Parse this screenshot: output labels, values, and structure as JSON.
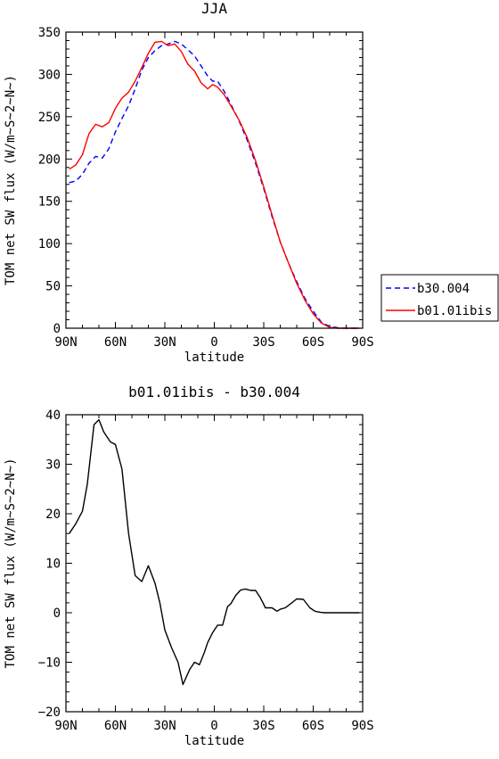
{
  "chart_data": [
    {
      "type": "line",
      "title": "JJA",
      "xlabel": "latitude",
      "ylabel": "TOM net SW flux (W/m~S~2~N~)",
      "xlim": [
        90,
        -90
      ],
      "ylim": [
        0,
        350
      ],
      "xticks": [
        90,
        60,
        30,
        0,
        -30,
        -60,
        -90
      ],
      "xtick_labels": [
        "90N",
        "60N",
        "30N",
        "0",
        "30S",
        "60S",
        "90S"
      ],
      "yticks": [
        0,
        50,
        100,
        150,
        200,
        250,
        300,
        350
      ],
      "ytick_labels": [
        "0",
        "50",
        "100",
        "150",
        "200",
        "250",
        "300",
        "350"
      ],
      "legend_position": "right",
      "series": [
        {
          "name": "b30.004",
          "color": "#0000ff",
          "dash": "dashed",
          "x": [
            88,
            84,
            80,
            76,
            72,
            68,
            64,
            60,
            56,
            52,
            48,
            44,
            40,
            36,
            32,
            28,
            24,
            20,
            16,
            12,
            8,
            4,
            1,
            -2,
            -6,
            -10,
            -15,
            -20,
            -25,
            -30,
            -35,
            -40,
            -45,
            -50,
            -55,
            -60,
            -65,
            -70,
            -75,
            -80,
            -85,
            -88
          ],
          "y": [
            172,
            174,
            182,
            195,
            203,
            201,
            212,
            232,
            248,
            263,
            283,
            305,
            320,
            328,
            334,
            336,
            339,
            336,
            329,
            322,
            310,
            298,
            292,
            292,
            280,
            265,
            245,
            222,
            195,
            165,
            132,
            102,
            77,
            55,
            35,
            20,
            7,
            2,
            0.5,
            0,
            0,
            0
          ]
        },
        {
          "name": "b01.01ibis",
          "color": "#ff0000",
          "dash": "solid",
          "x": [
            88,
            84,
            80,
            76,
            72,
            68,
            64,
            60,
            56,
            52,
            48,
            44,
            40,
            36,
            32,
            28,
            24,
            20,
            16,
            12,
            8,
            4,
            1,
            -2,
            -6,
            -10,
            -15,
            -20,
            -25,
            -30,
            -35,
            -40,
            -45,
            -50,
            -55,
            -60,
            -65,
            -70,
            -75,
            -80,
            -85,
            -88
          ],
          "y": [
            188,
            193,
            205,
            230,
            241,
            238,
            243,
            260,
            272,
            279,
            292,
            308,
            325,
            338,
            339,
            334,
            336,
            327,
            312,
            304,
            290,
            283,
            288,
            285,
            276,
            263,
            246,
            225,
            198,
            167,
            134,
            102,
            77,
            53,
            33,
            17,
            6,
            1,
            0,
            0,
            0,
            0
          ]
        }
      ]
    },
    {
      "type": "line",
      "title": "b01.01ibis - b30.004",
      "xlabel": "latitude",
      "ylabel": "TOM net SW flux (W/m~S~2~N~)",
      "xlim": [
        90,
        -90
      ],
      "ylim": [
        -20,
        40
      ],
      "xticks": [
        90,
        60,
        30,
        0,
        -30,
        -60,
        -90
      ],
      "xtick_labels": [
        "90N",
        "60N",
        "30N",
        "0",
        "30S",
        "60S",
        "90S"
      ],
      "yticks": [
        -20,
        -10,
        0,
        10,
        20,
        30,
        40
      ],
      "ytick_labels": [
        "−20",
        "−10",
        "0",
        "10",
        "20",
        "30",
        "40"
      ],
      "series": [
        {
          "color": "#000000",
          "dash": "solid",
          "x": [
            88,
            84,
            80,
            77,
            73,
            70,
            67,
            63,
            60,
            56,
            52,
            48,
            44,
            40,
            36,
            33,
            30,
            26,
            22,
            19,
            15,
            12,
            9,
            6,
            4,
            1,
            -2,
            -5,
            -8,
            -10,
            -13,
            -16,
            -19,
            -22,
            -25,
            -28,
            -31,
            -35,
            -38,
            -40,
            -43,
            -47,
            -50,
            -54,
            -58,
            -61,
            -64,
            -67,
            -70,
            -74,
            -78,
            -82,
            -86,
            -88
          ],
          "y": [
            16,
            18,
            20.5,
            26,
            38,
            39,
            36.5,
            34.5,
            34,
            29,
            16,
            7.5,
            6.3,
            9.5,
            6,
            2,
            -3.5,
            -7,
            -10,
            -14.5,
            -11.5,
            -10,
            -10.5,
            -8,
            -6,
            -4,
            -2.5,
            -2.5,
            1.2,
            1.8,
            3.5,
            4.6,
            4.8,
            4.5,
            4.5,
            3,
            1,
            1,
            0.3,
            0.7,
            1,
            2,
            2.8,
            2.7,
            1,
            0.3,
            0.1,
            0,
            0,
            0,
            0,
            0,
            0,
            0
          ]
        }
      ]
    }
  ]
}
